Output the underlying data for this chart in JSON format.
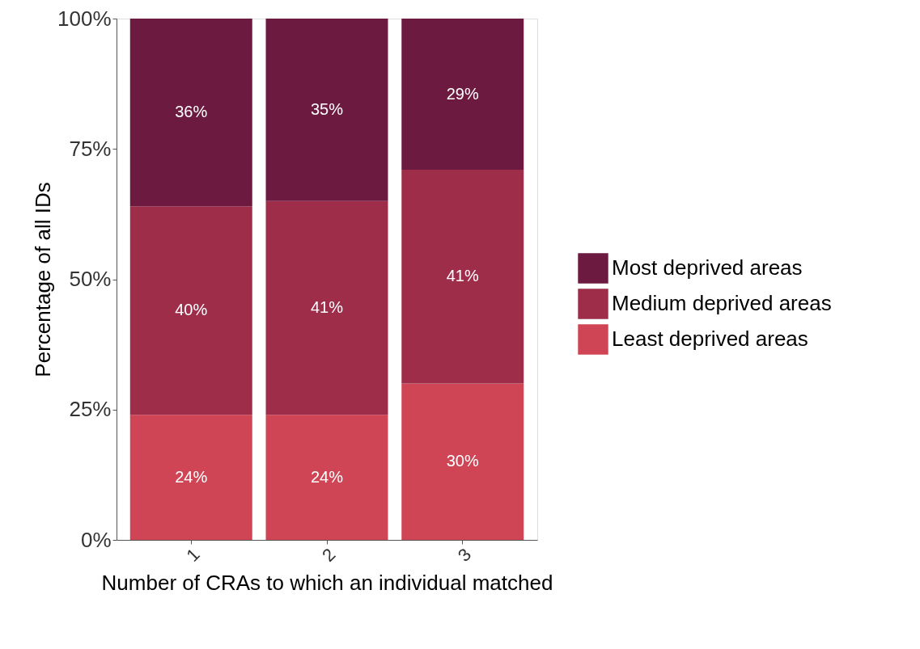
{
  "chart_data": {
    "type": "bar",
    "stacked": true,
    "xlabel": "Number of CRAs to which an individual matched",
    "ylabel": "Percentage of all IDs",
    "categories": [
      "1",
      "2",
      "3"
    ],
    "series": [
      {
        "name": "Least deprived areas",
        "color": "#d04555",
        "values": [
          24,
          24,
          30
        ],
        "value_labels": [
          "24%",
          "24%",
          "30%"
        ]
      },
      {
        "name": "Medium deprived areas",
        "color": "#9e2d4a",
        "values": [
          40,
          41,
          41
        ],
        "value_labels": [
          "40%",
          "41%",
          "41%"
        ]
      },
      {
        "name": "Most deprived areas",
        "color": "#6d1a41",
        "values": [
          36,
          35,
          29
        ],
        "value_labels": [
          "36%",
          "35%",
          "29%"
        ]
      }
    ],
    "ylim": [
      0,
      100
    ],
    "yticks": [
      {
        "value": 0,
        "label": "0%"
      },
      {
        "value": 25,
        "label": "25%"
      },
      {
        "value": 50,
        "label": "50%"
      },
      {
        "value": 75,
        "label": "75%"
      },
      {
        "value": 100,
        "label": "100%"
      }
    ],
    "grid": false,
    "legend": "right"
  }
}
